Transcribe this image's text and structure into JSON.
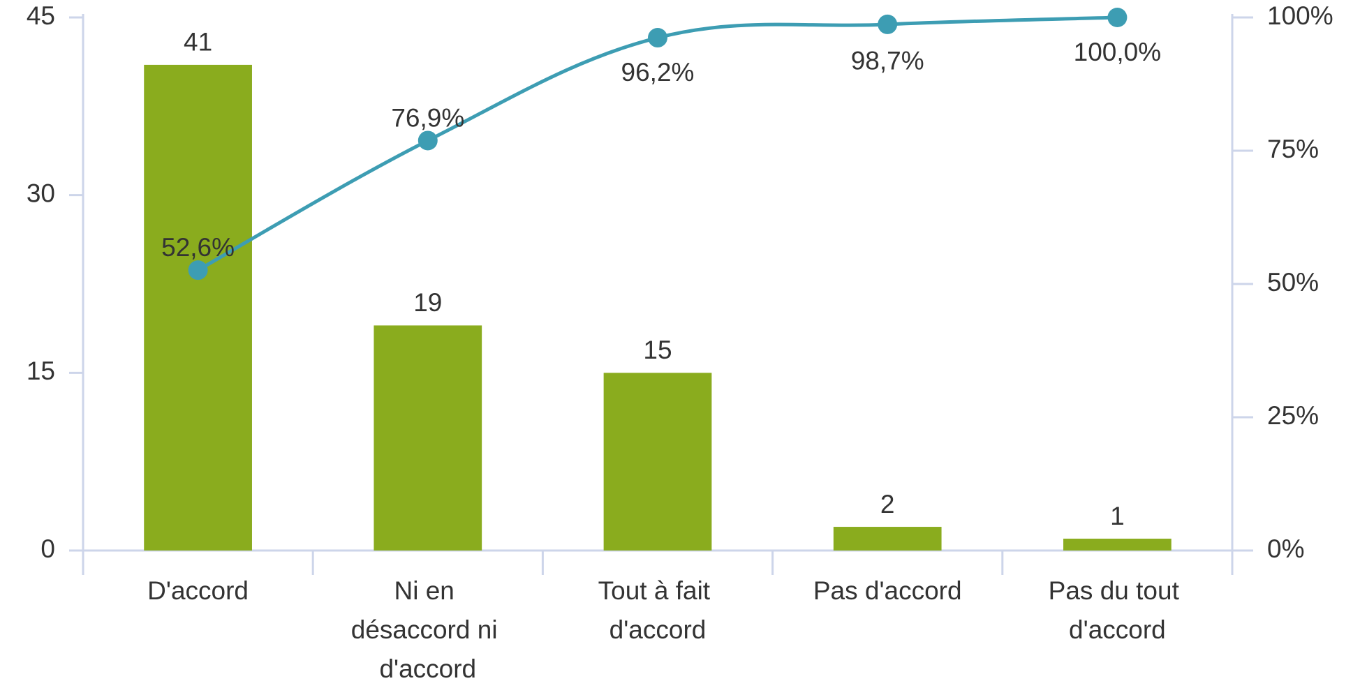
{
  "chart_data": {
    "type": "pareto",
    "categories": [
      "D'accord",
      "Ni en désaccord ni d'accord",
      "Tout à fait d'accord",
      "Pas d'accord",
      "Pas du tout d'accord"
    ],
    "series": [
      {
        "type": "bar",
        "color": "#8aac1e",
        "values": [
          41,
          19,
          15,
          2,
          1
        ]
      },
      {
        "type": "line",
        "axis": "y2",
        "color": "#3d9db3",
        "values": [
          52.6,
          76.9,
          96.2,
          98.7,
          100.0
        ],
        "value_labels": [
          "52,6%",
          "76,9%",
          "96,2%",
          "98,7%",
          "100,0%"
        ]
      }
    ],
    "ylim": [
      0,
      45
    ],
    "yticks": [
      0,
      15,
      30,
      45
    ],
    "y2lim": [
      0,
      100
    ],
    "y2ticks": [
      {
        "value": 0,
        "label": "0%"
      },
      {
        "value": 25,
        "label": "25%"
      },
      {
        "value": 50,
        "label": "50%"
      },
      {
        "value": 75,
        "label": "75%"
      },
      {
        "value": 100,
        "label": "100%"
      }
    ]
  }
}
